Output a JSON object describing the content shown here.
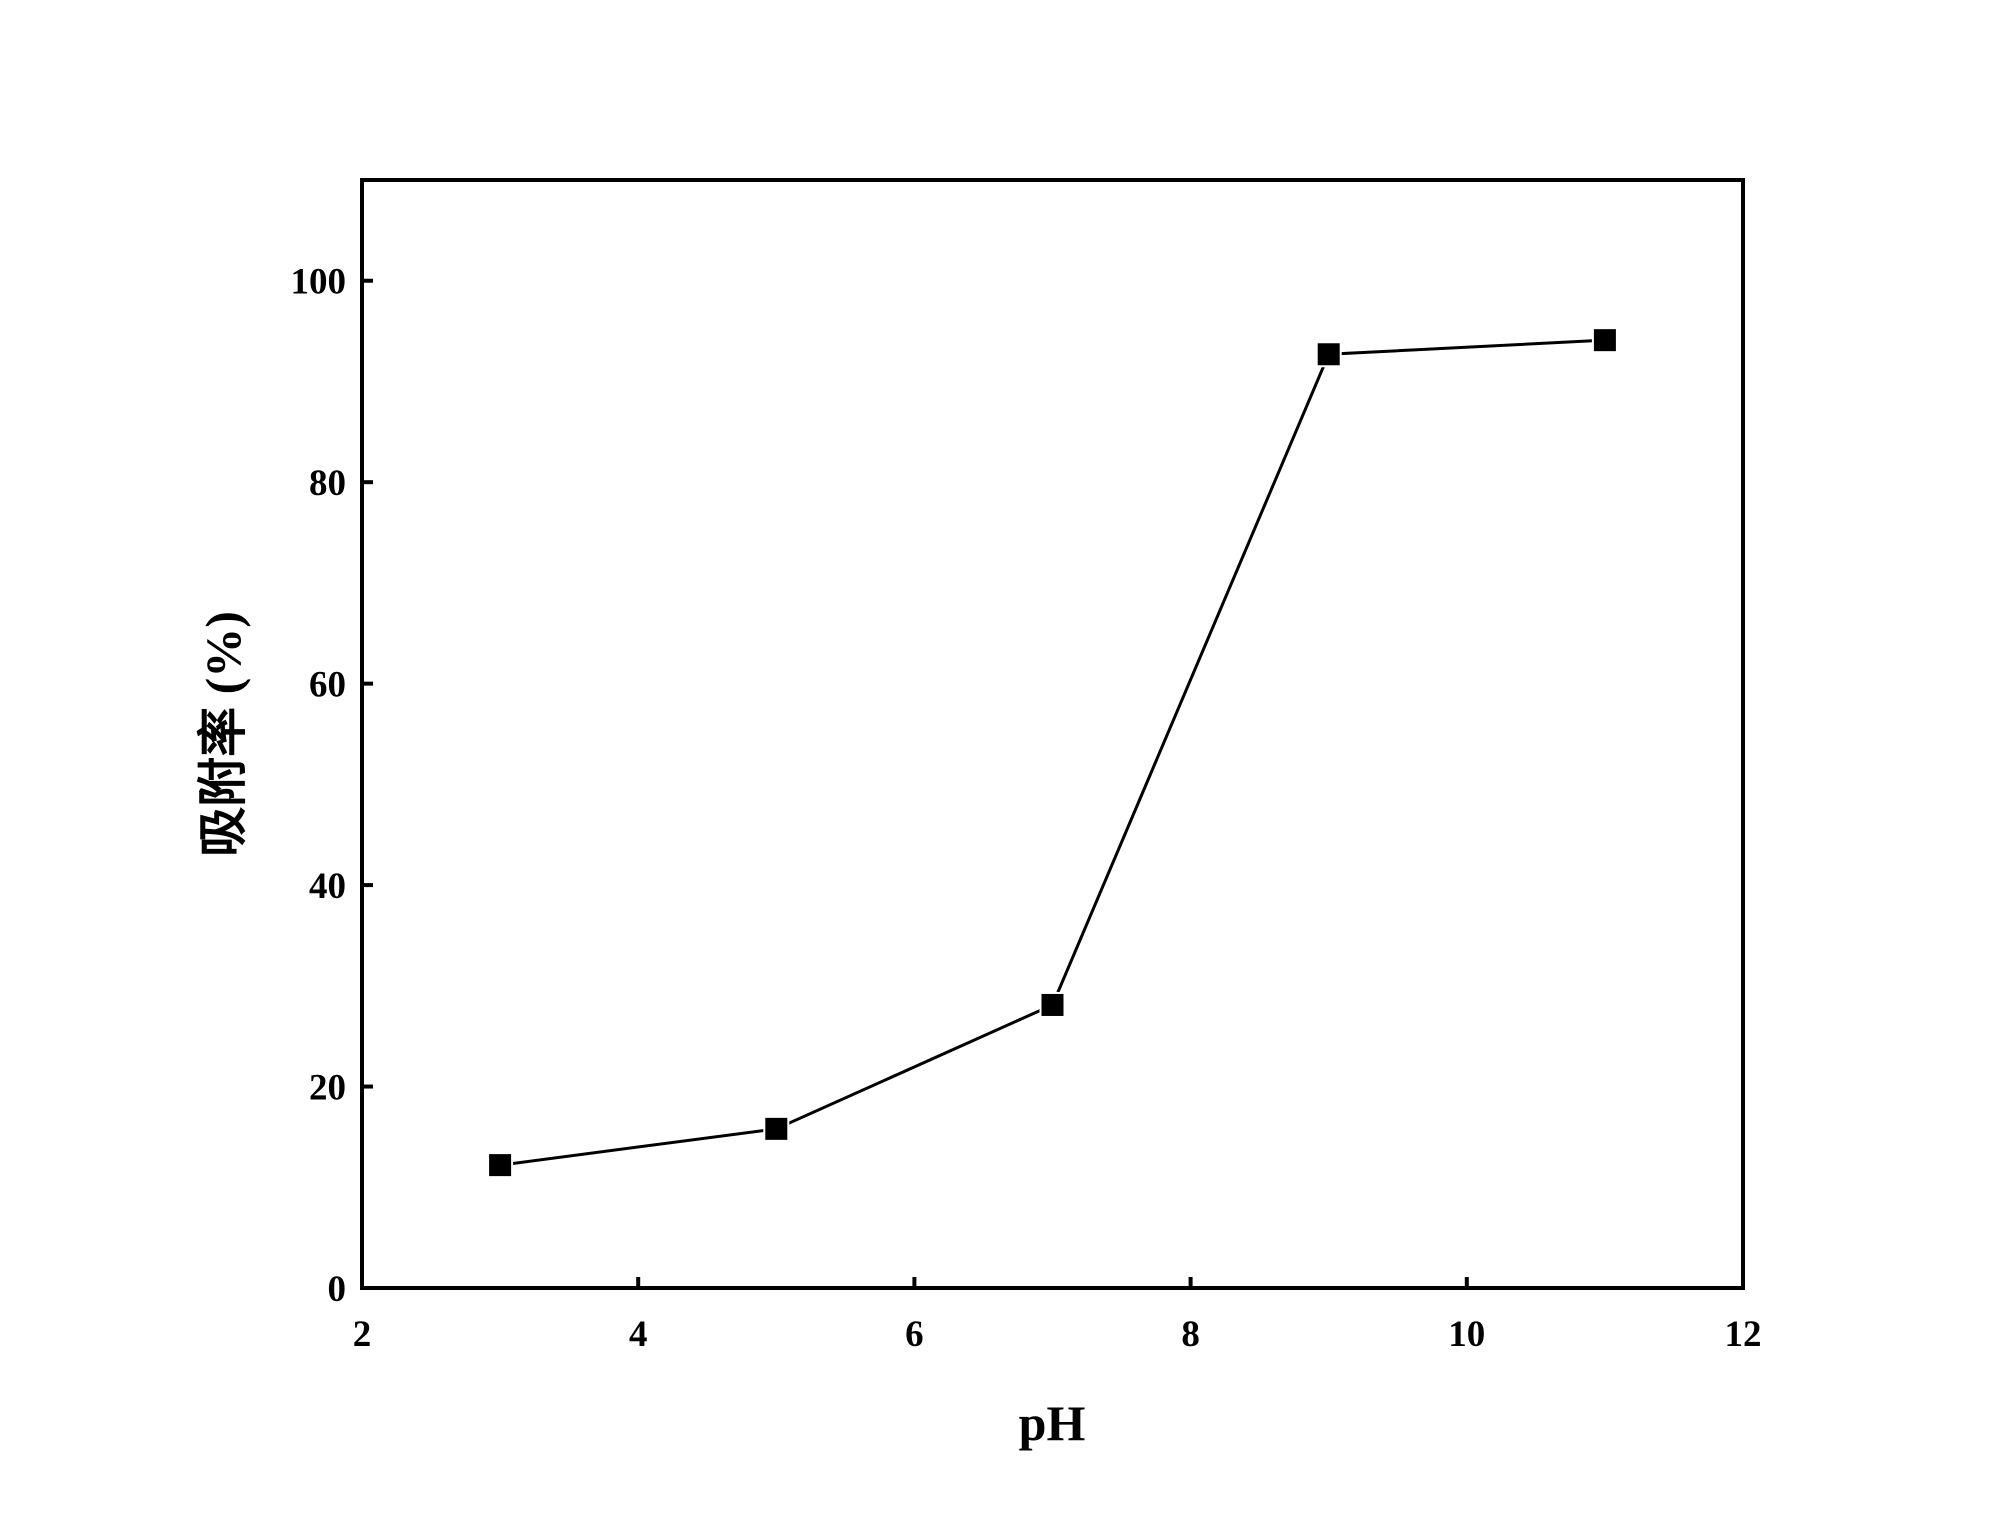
{
  "chart_data": {
    "type": "line",
    "x_label": "pH",
    "y_label": "吸附率 (%)",
    "x": [
      3,
      5,
      7,
      9,
      11
    ],
    "series": [
      {
        "name": "吸附率",
        "color": "#000000",
        "values": [
          12.2,
          15.8,
          28.1,
          92.7,
          94.1
        ]
      }
    ],
    "xlim": [
      2,
      12
    ],
    "xticks": [
      2,
      4,
      6,
      8,
      10,
      12
    ],
    "ylim": [
      0,
      110
    ],
    "yticks": [
      0,
      20,
      40,
      60,
      80,
      100
    ],
    "grid": false,
    "marker": "square"
  }
}
